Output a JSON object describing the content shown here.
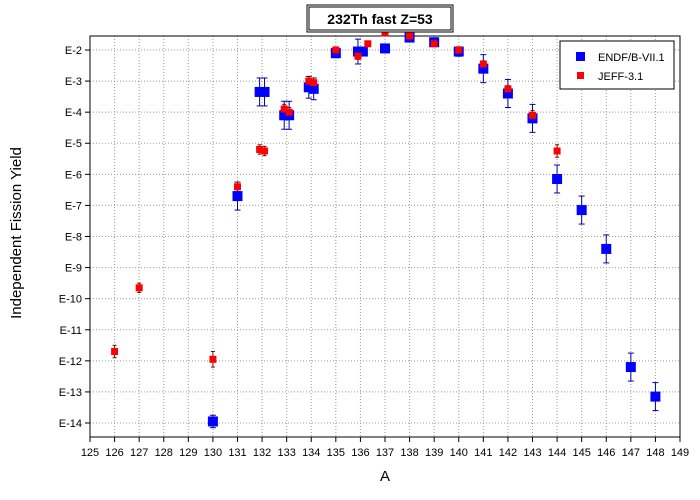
{
  "chart_data": {
    "type": "scatter",
    "title": "232Th fast Z=53",
    "xlabel": "A",
    "ylabel": "Independent Fission Yield",
    "xlim": [
      125,
      149
    ],
    "x_ticks": [
      125,
      126,
      127,
      128,
      129,
      130,
      131,
      132,
      133,
      134,
      135,
      136,
      137,
      138,
      139,
      140,
      141,
      142,
      143,
      144,
      145,
      146,
      147,
      148,
      149
    ],
    "y_scale": "log",
    "ylim_exponent": [
      -14.45,
      -1.55
    ],
    "y_ticks": [
      {
        "exp": -2,
        "label": "E-2"
      },
      {
        "exp": -3,
        "label": "E-3"
      },
      {
        "exp": -4,
        "label": "E-4"
      },
      {
        "exp": -5,
        "label": "E-5"
      },
      {
        "exp": -6,
        "label": "E-6"
      },
      {
        "exp": -7,
        "label": "E-7"
      },
      {
        "exp": -8,
        "label": "E-8"
      },
      {
        "exp": -9,
        "label": "E-9"
      },
      {
        "exp": -10,
        "label": "E-10"
      },
      {
        "exp": -11,
        "label": "E-11"
      },
      {
        "exp": -12,
        "label": "E-12"
      },
      {
        "exp": -13,
        "label": "E-13"
      },
      {
        "exp": -14,
        "label": "E-14"
      }
    ],
    "grid": true,
    "legend_position": "top-right",
    "series": [
      {
        "name": "ENDF/B-VII.1",
        "color": "#0000ff",
        "marker": "square-large",
        "points": [
          {
            "x": 130,
            "y_exp": -13.95,
            "err": 0.2
          },
          {
            "x": 131,
            "y_exp": -6.7,
            "err": 0.45
          },
          {
            "x": 131.9,
            "y_exp": -3.35,
            "err": 0.45
          },
          {
            "x": 132.1,
            "y_exp": -3.35,
            "err": 0.45
          },
          {
            "x": 132.9,
            "y_exp": -4.1,
            "err": 0.45
          },
          {
            "x": 133.1,
            "y_exp": -4.1,
            "err": 0.45
          },
          {
            "x": 133.9,
            "y_exp": -3.2,
            "err": 0.35
          },
          {
            "x": 134.1,
            "y_exp": -3.25,
            "err": 0.35
          },
          {
            "x": 135,
            "y_exp": -2.1,
            "err": 0.15
          },
          {
            "x": 135.9,
            "y_exp": -2.05,
            "err": 0.4
          },
          {
            "x": 136.1,
            "y_exp": -2.05,
            "err": 0.1
          },
          {
            "x": 137,
            "y_exp": -1.95,
            "err": 0.1
          },
          {
            "x": 138,
            "y_exp": -1.6,
            "err": 0.1
          },
          {
            "x": 139,
            "y_exp": -1.75,
            "err": 0.1
          },
          {
            "x": 140,
            "y_exp": -2.05,
            "err": 0.15
          },
          {
            "x": 141,
            "y_exp": -2.6,
            "err": 0.45
          },
          {
            "x": 142,
            "y_exp": -3.4,
            "err": 0.45
          },
          {
            "x": 143,
            "y_exp": -4.2,
            "err": 0.45
          },
          {
            "x": 144,
            "y_exp": -6.15,
            "err": 0.45
          },
          {
            "x": 145,
            "y_exp": -7.15,
            "err": 0.45
          },
          {
            "x": 146,
            "y_exp": -8.4,
            "err": 0.45
          },
          {
            "x": 147,
            "y_exp": -12.2,
            "err": 0.45
          },
          {
            "x": 148,
            "y_exp": -13.15,
            "err": 0.45
          }
        ]
      },
      {
        "name": "JEFF-3.1",
        "color": "#ff0000",
        "marker": "square-small",
        "points": [
          {
            "x": 126,
            "y_exp": -11.7,
            "err": 0.2
          },
          {
            "x": 127,
            "y_exp": -9.65,
            "err": 0.15
          },
          {
            "x": 130,
            "y_exp": -11.95,
            "err": 0.25
          },
          {
            "x": 131,
            "y_exp": -6.4,
            "err": 0.15
          },
          {
            "x": 131.9,
            "y_exp": -5.2,
            "err": 0.15
          },
          {
            "x": 132.1,
            "y_exp": -5.25,
            "err": 0.15
          },
          {
            "x": 132.9,
            "y_exp": -3.9,
            "err": 0.15
          },
          {
            "x": 133.1,
            "y_exp": -4.0,
            "err": 0.15
          },
          {
            "x": 133.9,
            "y_exp": -3.0,
            "err": 0.15
          },
          {
            "x": 134.1,
            "y_exp": -3.05,
            "err": 0.15
          },
          {
            "x": 135,
            "y_exp": -2.0,
            "err": 0.1
          },
          {
            "x": 135.9,
            "y_exp": -2.2,
            "err": 0.1
          },
          {
            "x": 136.3,
            "y_exp": -1.8,
            "err": 0.05
          },
          {
            "x": 137,
            "y_exp": -1.45,
            "err": 0.05
          },
          {
            "x": 138,
            "y_exp": -1.55,
            "err": 0.05
          },
          {
            "x": 139,
            "y_exp": -1.8,
            "err": 0.05
          },
          {
            "x": 140,
            "y_exp": -2.0,
            "err": 0.1
          },
          {
            "x": 141,
            "y_exp": -2.45,
            "err": 0.1
          },
          {
            "x": 142,
            "y_exp": -3.25,
            "err": 0.1
          },
          {
            "x": 143,
            "y_exp": -4.1,
            "err": 0.15
          },
          {
            "x": 144,
            "y_exp": -5.25,
            "err": 0.2
          }
        ]
      }
    ]
  }
}
